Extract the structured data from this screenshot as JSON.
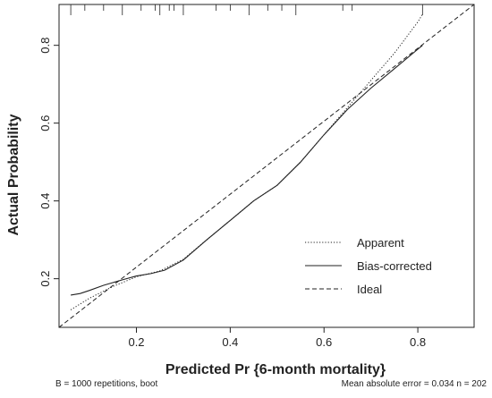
{
  "chart_data": {
    "type": "line",
    "xlabel": "Predicted Pr {6-month mortality}",
    "ylabel": "Actual Probability",
    "xlim": [
      0.035,
      0.92
    ],
    "ylim": [
      0.075,
      0.905
    ],
    "x_ticks": [
      0.2,
      0.4,
      0.6,
      0.8
    ],
    "y_ticks": [
      0.2,
      0.4,
      0.6,
      0.8
    ],
    "x_tick_labels": [
      "0.2",
      "0.4",
      "0.6",
      "0.8"
    ],
    "y_tick_labels": [
      "0.2",
      "0.4",
      "0.6",
      "0.8"
    ],
    "grid": false,
    "legend_position": "bottom-right",
    "rug_x": [
      0.06,
      0.09,
      0.13,
      0.17,
      0.21,
      0.24,
      0.25,
      0.27,
      0.28,
      0.3,
      0.37,
      0.4,
      0.44,
      0.48,
      0.51,
      0.54,
      0.64,
      0.66,
      0.81
    ],
    "series": [
      {
        "name": "Apparent",
        "style": "dotted",
        "x": [
          0.06,
          0.1,
          0.15,
          0.2,
          0.25,
          0.3,
          0.35,
          0.4,
          0.45,
          0.5,
          0.55,
          0.6,
          0.65,
          0.7,
          0.75,
          0.8,
          0.81
        ],
        "y": [
          0.12,
          0.15,
          0.18,
          0.205,
          0.22,
          0.25,
          0.3,
          0.35,
          0.4,
          0.44,
          0.5,
          0.57,
          0.64,
          0.71,
          0.78,
          0.86,
          0.88
        ]
      },
      {
        "name": "Bias-corrected",
        "style": "solid",
        "x": [
          0.06,
          0.08,
          0.1,
          0.13,
          0.17,
          0.2,
          0.23,
          0.26,
          0.3,
          0.35,
          0.4,
          0.45,
          0.5,
          0.55,
          0.6,
          0.65,
          0.7,
          0.75,
          0.8,
          0.81
        ],
        "y": [
          0.158,
          0.162,
          0.17,
          0.183,
          0.197,
          0.207,
          0.213,
          0.222,
          0.248,
          0.3,
          0.35,
          0.4,
          0.44,
          0.5,
          0.57,
          0.635,
          0.69,
          0.74,
          0.79,
          0.8
        ]
      },
      {
        "name": "Ideal",
        "style": "dashed",
        "x": [
          0.035,
          0.92
        ],
        "y": [
          0.075,
          0.905
        ]
      }
    ]
  },
  "footnote_left": "B = 1000 repetitions, boot",
  "footnote_right": "Mean absolute error = 0.034 n = 202"
}
